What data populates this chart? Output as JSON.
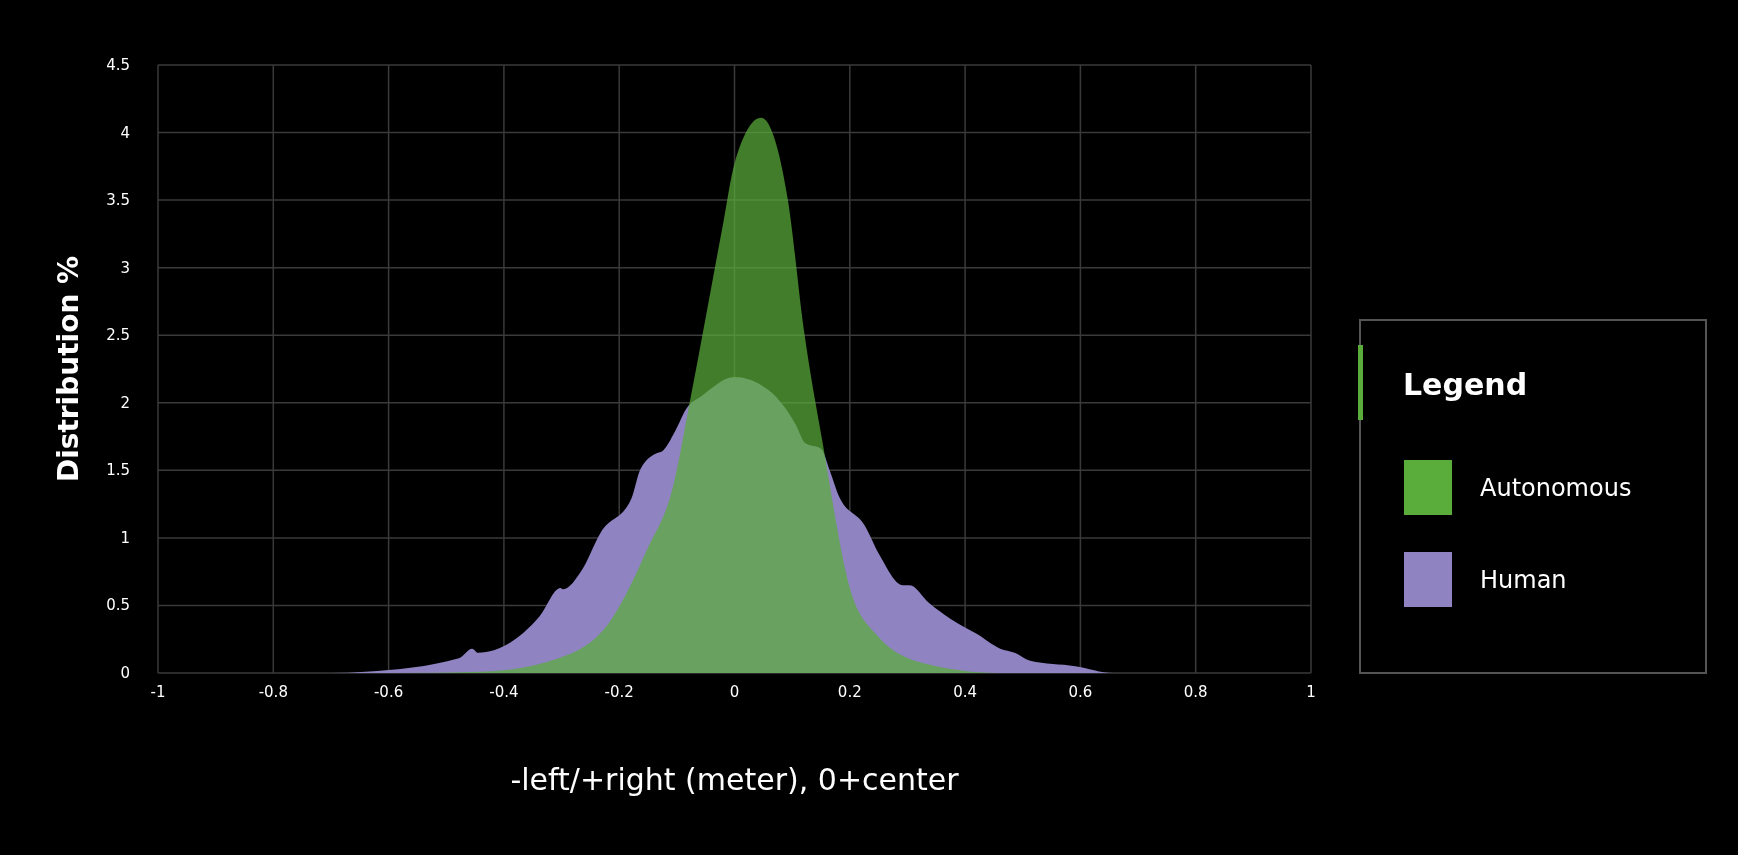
{
  "chart_data": {
    "type": "area",
    "xlabel": "-left/+right (meter), 0+center",
    "ylabel": "Distribution %",
    "legend_title": "Legend",
    "legend": "right",
    "grid": true,
    "xlim": [
      -1,
      1
    ],
    "xticks": [
      -1,
      -0.8,
      -0.6,
      -0.4,
      -0.2,
      0,
      0.2,
      0.4,
      0.6,
      0.8,
      1
    ],
    "ylim": [
      0,
      4.5
    ],
    "yticks": [
      0,
      0.5,
      1,
      1.5,
      2,
      2.5,
      3,
      3.5,
      4,
      4.5
    ],
    "series": [
      {
        "name": "Autonomous",
        "color": "#5aad3a",
        "x": [
          -1,
          -0.6,
          -0.44,
          -0.305,
          -0.213,
          -0.152,
          -0.106,
          -0.076,
          -0.02,
          0,
          0.046,
          0.093,
          0.12,
          0.153,
          0.2,
          0.245,
          0.33,
          0.46,
          0.7,
          1
        ],
        "values": [
          0,
          0,
          0.01,
          0.11,
          0.4,
          0.91,
          1.39,
          2.04,
          3.32,
          3.77,
          4.11,
          3.49,
          2.55,
          1.7,
          0.63,
          0.29,
          0.07,
          0,
          0,
          0
        ]
      },
      {
        "name": "Human",
        "color": "#8f83c2",
        "x": [
          -1,
          -0.7,
          -0.64,
          -0.478,
          -0.455,
          -0.445,
          -0.338,
          -0.302,
          -0.297,
          -0.265,
          -0.232,
          -0.179,
          -0.163,
          -0.133,
          -0.126,
          -0.103,
          -0.083,
          -0.057,
          0,
          0.06,
          0.106,
          0.123,
          0.15,
          0.166,
          0.18,
          0.226,
          0.252,
          0.292,
          0.304,
          0.337,
          0.375,
          0.42,
          0.461,
          0.486,
          0.513,
          0.591,
          0.657,
          1
        ],
        "values": [
          0,
          0,
          0.01,
          0.11,
          0.18,
          0.15,
          0.42,
          0.63,
          0.62,
          0.76,
          1.04,
          1.29,
          1.51,
          1.63,
          1.64,
          1.79,
          1.96,
          2.05,
          2.19,
          2.09,
          1.84,
          1.7,
          1.66,
          1.49,
          1.32,
          1.09,
          0.87,
          0.65,
          0.65,
          0.52,
          0.4,
          0.29,
          0.18,
          0.15,
          0.09,
          0.05,
          0,
          0
        ]
      }
    ]
  }
}
